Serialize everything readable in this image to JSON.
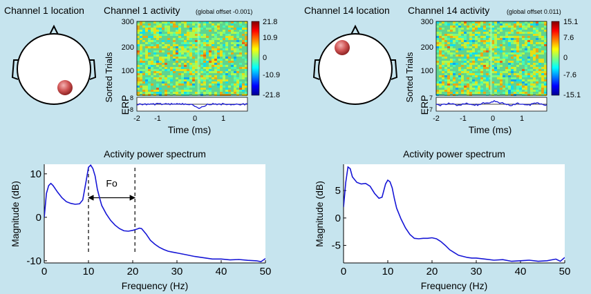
{
  "panels": [
    {
      "location_title": "Channel 1 location",
      "activity_title": "Channel 1 activity",
      "offset_label": "(global offset -0.001)",
      "electrode": "posterior-right",
      "y_axis_label": "Sorted Trials",
      "erp_label": "ERP",
      "erp_tick_labels": [
        "8",
        "-8"
      ],
      "y_ticks": [
        "300",
        "200",
        "100"
      ],
      "x_ticks": [
        "-2",
        "-1",
        "0",
        "1"
      ],
      "x_label": "Time (ms)",
      "colorbar_ticks": [
        "21.8",
        "10.9",
        "0",
        "-10.9",
        "-21.8"
      ]
    },
    {
      "location_title": "Channel 14 location",
      "activity_title": "Channel 14 activity",
      "offset_label": "(global offset 0.011)",
      "electrode": "anterior-left",
      "y_axis_label": "Sorted Trials",
      "erp_label": "ERP",
      "erp_tick_labels": [
        "7",
        "-7"
      ],
      "y_ticks": [
        "300",
        "200",
        "100"
      ],
      "x_ticks": [
        "-2",
        "-1",
        "0",
        "1"
      ],
      "x_label": "Time (ms)",
      "colorbar_ticks": [
        "15.1",
        "7.6",
        "0",
        "-7.6",
        "-15.1"
      ]
    }
  ],
  "chart_data": [
    {
      "type": "line",
      "title": "Activity power spectrum",
      "xlabel": "Frequency (Hz)",
      "ylabel": "Magnitude (dB)",
      "xlim": [
        0,
        50
      ],
      "ylim": [
        -10.5,
        12.2
      ],
      "x_ticks": [
        0,
        10,
        20,
        30,
        40,
        50
      ],
      "y_ticks": [
        10,
        0,
        -10
      ],
      "series": [
        {
          "color": "#1515d6",
          "x": [
            0,
            0.5,
            1,
            1.5,
            2,
            3,
            4,
            5,
            6,
            7,
            8,
            8.7,
            9.5,
            10,
            10.5,
            11,
            11.5,
            12,
            12.5,
            13,
            14,
            15,
            16,
            17,
            18,
            19,
            20,
            21,
            21.5,
            22,
            23,
            24,
            25,
            26,
            27,
            28,
            29,
            30,
            32,
            34,
            36,
            38,
            40,
            42,
            44,
            46,
            48,
            49,
            50
          ],
          "y": [
            0,
            5.5,
            7.3,
            7.8,
            7.3,
            5.8,
            4.5,
            3.6,
            3.2,
            3.0,
            3.1,
            4.0,
            8.5,
            11.5,
            12.0,
            11.2,
            9.5,
            6.5,
            4.5,
            2.7,
            0.8,
            -0.7,
            -1.8,
            -2.6,
            -3.1,
            -3.2,
            -3.0,
            -2.7,
            -2.5,
            -2.6,
            -3.8,
            -5.3,
            -6.2,
            -6.9,
            -7.4,
            -7.8,
            -8.0,
            -8.2,
            -8.6,
            -9.0,
            -9.3,
            -9.6,
            -9.6,
            -9.8,
            -9.7,
            -9.9,
            -10.0,
            -10.2,
            -9.5
          ]
        }
      ],
      "annotation": {
        "label": "Fo",
        "dashed_x": [
          10,
          20.5
        ],
        "arrow_y": 4.5
      }
    },
    {
      "type": "line",
      "title": "Activity power spectrum",
      "xlabel": "Frequency (Hz)",
      "ylabel": "Magnitude (dB)",
      "xlim": [
        0,
        50
      ],
      "ylim": [
        -8.2,
        9.8
      ],
      "x_ticks": [
        0,
        10,
        20,
        30,
        40,
        50
      ],
      "y_ticks": [
        5,
        0,
        -5
      ],
      "series": [
        {
          "color": "#1515d6",
          "x": [
            0,
            0.5,
            1,
            1.5,
            2,
            3,
            4,
            5,
            6,
            7,
            8,
            8.7,
            9.5,
            10,
            10.5,
            11,
            11.5,
            12,
            13,
            14,
            15,
            16,
            17,
            18,
            19,
            20,
            21,
            22,
            23,
            24,
            25,
            26,
            27,
            28,
            29,
            30,
            32,
            34,
            36,
            38,
            40,
            42,
            44,
            46,
            48,
            49,
            50
          ],
          "y": [
            2.0,
            6.5,
            9.3,
            9.0,
            7.5,
            6.5,
            6.2,
            6.3,
            5.8,
            4.5,
            3.6,
            3.8,
            6.2,
            6.9,
            6.6,
            5.5,
            3.5,
            1.8,
            -0.2,
            -1.8,
            -3.0,
            -3.7,
            -3.8,
            -3.7,
            -3.7,
            -3.6,
            -3.8,
            -4.3,
            -5.0,
            -5.8,
            -6.3,
            -6.8,
            -7.0,
            -7.2,
            -7.3,
            -7.3,
            -7.5,
            -7.7,
            -7.6,
            -7.9,
            -7.8,
            -7.7,
            -7.9,
            -7.8,
            -7.5,
            -7.9,
            -7.2
          ]
        }
      ]
    }
  ]
}
